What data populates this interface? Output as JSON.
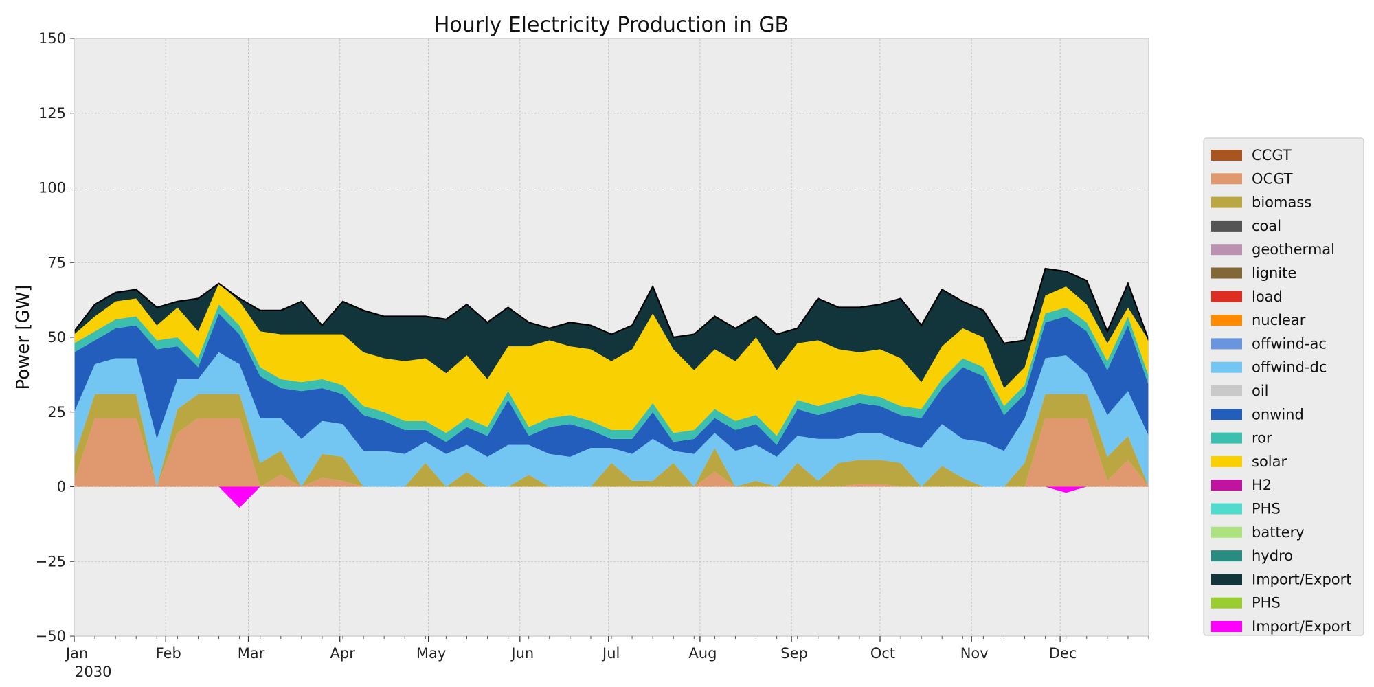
{
  "chart_data": {
    "type": "area",
    "title": "Hourly Electricity Production in GB",
    "xlabel": "",
    "ylabel": "Power [GW]",
    "ylim": [
      -50,
      150
    ],
    "yticks": [
      -50,
      -25,
      0,
      25,
      50,
      75,
      100,
      125,
      150
    ],
    "ytick_labels": [
      "−50",
      "−25",
      "0",
      "25",
      "50",
      "75",
      "100",
      "125",
      "150"
    ],
    "x_start": "2030-01-01",
    "x_end": "2030-12-31",
    "x_weekly_points": 53,
    "month_ticks": [
      {
        "date": "2030-01-01",
        "label": "Jan",
        "sublabel": "2030"
      },
      {
        "date": "2030-02-01",
        "label": "Feb"
      },
      {
        "date": "2030-03-01",
        "label": "Mar"
      },
      {
        "date": "2030-04-01",
        "label": "Apr"
      },
      {
        "date": "2030-05-01",
        "label": "May"
      },
      {
        "date": "2030-06-01",
        "label": "Jun"
      },
      {
        "date": "2030-07-01",
        "label": "Jul"
      },
      {
        "date": "2030-08-01",
        "label": "Aug"
      },
      {
        "date": "2030-09-01",
        "label": "Sep"
      },
      {
        "date": "2030-10-01",
        "label": "Oct"
      },
      {
        "date": "2030-11-01",
        "label": "Nov"
      },
      {
        "date": "2030-12-01",
        "label": "Dec"
      }
    ],
    "grid": true,
    "legend_position": "right",
    "stacked_positive": [
      {
        "name": "OCGT",
        "color": "#e0996f",
        "values": [
          2,
          23,
          23,
          23,
          0,
          18,
          23,
          23,
          23,
          0,
          4,
          0,
          3,
          2,
          0,
          0,
          0,
          0,
          0,
          0,
          0,
          0,
          0,
          0,
          0,
          0,
          0,
          0,
          0,
          0,
          0,
          5,
          0,
          0,
          0,
          0,
          0,
          0,
          1,
          1,
          0,
          0,
          0,
          0,
          0,
          0,
          0,
          23,
          23,
          23,
          2,
          9,
          0
        ]
      },
      {
        "name": "biomass",
        "color": "#baa741",
        "values": [
          8,
          8,
          8,
          8,
          0,
          8,
          8,
          8,
          8,
          8,
          8,
          0,
          8,
          8,
          0,
          0,
          0,
          8,
          0,
          5,
          0,
          0,
          4,
          0,
          0,
          0,
          8,
          2,
          2,
          8,
          0,
          8,
          0,
          2,
          0,
          8,
          2,
          8,
          8,
          8,
          8,
          0,
          7,
          3,
          0,
          0,
          8,
          8,
          8,
          8,
          8,
          8,
          0
        ]
      },
      {
        "name": "offwind-dc",
        "color": "#74c6f2",
        "values": [
          15,
          10,
          12,
          12,
          16,
          10,
          5,
          14,
          10,
          15,
          11,
          16,
          11,
          11,
          12,
          12,
          11,
          7,
          11,
          9,
          10,
          14,
          10,
          11,
          10,
          13,
          5,
          9,
          14,
          4,
          11,
          5,
          12,
          12,
          10,
          9,
          14,
          8,
          9,
          9,
          7,
          13,
          14,
          13,
          15,
          12,
          15,
          12,
          13,
          7,
          14,
          15,
          17
        ]
      },
      {
        "name": "onwind",
        "color": "#235ebc",
        "values": [
          20,
          8,
          10,
          11,
          30,
          11,
          4,
          13,
          10,
          14,
          10,
          16,
          11,
          10,
          12,
          10,
          8,
          4,
          4,
          6,
          7,
          15,
          3,
          9,
          11,
          6,
          3,
          5,
          9,
          3,
          5,
          5,
          7,
          7,
          4,
          9,
          8,
          10,
          10,
          9,
          9,
          10,
          12,
          24,
          22,
          12,
          8,
          12,
          13,
          14,
          15,
          22,
          17
        ]
      },
      {
        "name": "ror",
        "color": "#3dbfb0",
        "values": [
          3,
          3,
          3,
          3,
          3,
          3,
          3,
          3,
          3,
          3,
          3,
          3,
          3,
          3,
          3,
          3,
          3,
          3,
          3,
          3,
          3,
          3,
          3,
          3,
          3,
          3,
          3,
          3,
          3,
          3,
          3,
          3,
          3,
          3,
          3,
          3,
          3,
          3,
          3,
          3,
          3,
          3,
          3,
          3,
          3,
          3,
          3,
          3,
          3,
          3,
          3,
          3,
          3
        ]
      },
      {
        "name": "solar",
        "color": "#f9d002",
        "values": [
          3,
          5,
          6,
          6,
          5,
          10,
          9,
          7,
          8,
          12,
          15,
          16,
          15,
          17,
          18,
          18,
          20,
          21,
          20,
          21,
          16,
          15,
          27,
          26,
          23,
          24,
          23,
          27,
          30,
          28,
          20,
          20,
          20,
          26,
          22,
          19,
          22,
          17,
          14,
          16,
          16,
          9,
          11,
          10,
          10,
          6,
          6,
          6,
          7,
          6,
          6,
          3,
          12
        ]
      },
      {
        "name": "Import/Export",
        "color": "#12343b",
        "values": [
          1,
          4,
          3,
          3,
          6,
          2,
          11,
          0,
          1,
          7,
          8,
          11,
          3,
          11,
          14,
          14,
          15,
          14,
          18,
          17,
          19,
          13,
          8,
          4,
          8,
          8,
          9,
          8,
          9,
          4,
          12,
          11,
          11,
          7,
          12,
          5,
          14,
          14,
          15,
          15,
          20,
          19,
          19,
          9,
          9,
          15,
          9,
          9,
          5,
          8,
          4,
          8,
          0
        ]
      }
    ],
    "negative_series": [
      {
        "name": "Import/Export",
        "color": "#ff00ff",
        "values": [
          0,
          0,
          0,
          0,
          0,
          0,
          0,
          0,
          -7,
          0,
          0,
          0,
          0,
          0,
          0,
          0,
          0,
          0,
          0,
          0,
          0,
          0,
          0,
          0,
          0,
          0,
          0,
          0,
          0,
          0,
          0,
          0,
          0,
          0,
          0,
          0,
          0,
          0,
          0,
          0,
          0,
          0,
          0,
          0,
          0,
          0,
          0,
          0,
          -2,
          0,
          0,
          0,
          0
        ]
      }
    ],
    "legend": [
      {
        "name": "CCGT",
        "color": "#a85522"
      },
      {
        "name": "OCGT",
        "color": "#e0996f"
      },
      {
        "name": "biomass",
        "color": "#baa741"
      },
      {
        "name": "coal",
        "color": "#545454"
      },
      {
        "name": "geothermal",
        "color": "#ba91b1"
      },
      {
        "name": "lignite",
        "color": "#826837"
      },
      {
        "name": "load",
        "color": "#dd2e23"
      },
      {
        "name": "nuclear",
        "color": "#ff8c00"
      },
      {
        "name": "offwind-ac",
        "color": "#6895dd"
      },
      {
        "name": "offwind-dc",
        "color": "#74c6f2"
      },
      {
        "name": "oil",
        "color": "#c9c9c9"
      },
      {
        "name": "onwind",
        "color": "#235ebc"
      },
      {
        "name": "ror",
        "color": "#3dbfb0"
      },
      {
        "name": "solar",
        "color": "#f9d002"
      },
      {
        "name": "H2",
        "color": "#bf13a0"
      },
      {
        "name": "PHS",
        "color": "#51dbcc"
      },
      {
        "name": "battery",
        "color": "#ace37f"
      },
      {
        "name": "hydro",
        "color": "#298c81"
      },
      {
        "name": "Import/Export",
        "color": "#12343b"
      },
      {
        "name": "PHS",
        "color": "#9acd32"
      },
      {
        "name": "Import/Export",
        "color": "#ff00ff"
      }
    ]
  }
}
